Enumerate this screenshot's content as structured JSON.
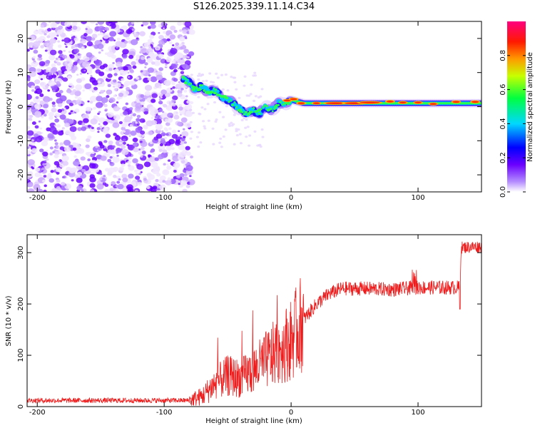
{
  "title": "S126.2025.339.11.14.C34",
  "chart_data": [
    {
      "type": "heatmap",
      "name": "spectrogram",
      "xlabel": "Height of straight line (km)",
      "ylabel": "Frequency (Hz)",
      "xlim": [
        -208,
        150
      ],
      "ylim": [
        -25,
        25
      ],
      "xticks": [
        -200,
        -100,
        0,
        100
      ],
      "yticks": [
        -20,
        -10,
        0,
        10,
        20
      ],
      "colorbar": {
        "label": "Normalized spectral amplitude",
        "range": [
          0,
          1
        ],
        "ticks": [
          0.0,
          0.2,
          0.4,
          0.6,
          0.8
        ],
        "tick_labels": [
          "0.0",
          "0.2",
          "0.4",
          "0.6",
          "0.8"
        ]
      },
      "ridge_x": [
        -85,
        -80,
        -75,
        -70,
        -65,
        -60,
        -55,
        -50,
        -45,
        -40,
        -35,
        -30,
        -25,
        -20,
        -15,
        -10,
        -5,
        0,
        10,
        20,
        40,
        60,
        80,
        100,
        120,
        150
      ],
      "ridge_freq": [
        8,
        7,
        5,
        6,
        4,
        5,
        3,
        2,
        1,
        -1,
        -2,
        -1,
        -2,
        0,
        -1,
        1,
        1,
        2,
        1,
        1,
        1,
        1,
        1,
        1,
        1,
        1
      ]
    },
    {
      "type": "line",
      "name": "snr",
      "xlabel": "Height of straight line (km)",
      "ylabel": "SNR (10 * v/v)",
      "xlim": [
        -208,
        150
      ],
      "ylim": [
        0,
        335
      ],
      "xticks": [
        -200,
        -100,
        0,
        100
      ],
      "yticks": [
        0,
        100,
        200,
        300
      ],
      "color": "#ee1c1c",
      "series_anchors": {
        "x": [
          -208,
          -80,
          -70,
          -60,
          -50,
          -40,
          -30,
          -20,
          -10,
          0,
          10,
          20,
          30,
          40,
          60,
          80,
          100,
          120,
          133,
          134,
          150
        ],
        "y": [
          12,
          12,
          20,
          45,
          60,
          55,
          70,
          90,
          110,
          130,
          170,
          200,
          220,
          230,
          230,
          228,
          232,
          232,
          232,
          310,
          312
        ]
      }
    }
  ]
}
